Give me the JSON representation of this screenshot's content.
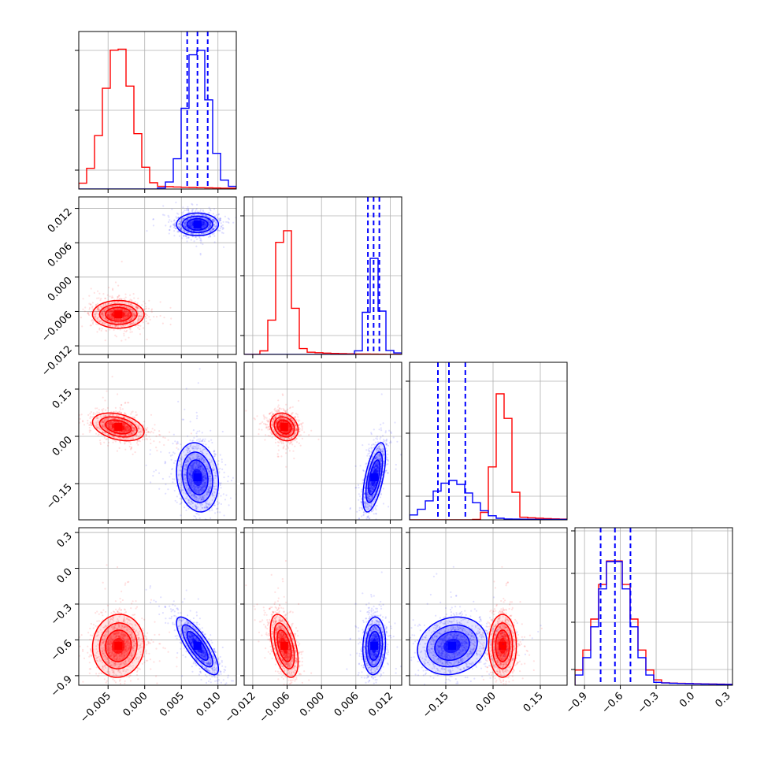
{
  "chart_data": {
    "type": "corner",
    "title": "",
    "grid": true,
    "series": [
      {
        "color": "#ff0000",
        "mean": [
          -0.0036,
          -0.0065,
          0.03,
          -0.65
        ],
        "sd": [
          0.0016,
          0.0011,
          0.02,
          0.12
        ],
        "corr": [
          [
            1,
            0,
            -0.35,
            0.05
          ],
          [
            0,
            1,
            -0.2,
            -0.5
          ],
          [
            -0.35,
            -0.2,
            1,
            0
          ],
          [
            0.05,
            -0.5,
            0,
            1
          ]
        ]
      },
      {
        "color": "#0000ff",
        "mean": [
          0.0072,
          0.0092,
          -0.13,
          -0.65
        ],
        "sd": [
          0.0013,
          0.0009,
          0.05,
          0.11
        ],
        "corr": [
          [
            1,
            0,
            -0.15,
            -0.8
          ],
          [
            0,
            1,
            0.6,
            0.1
          ],
          [
            -0.15,
            0.6,
            1,
            0.15
          ],
          [
            -0.8,
            0.1,
            0.15,
            1
          ]
        ]
      }
    ],
    "quantiles": [
      [
        0.0058,
        0.0072,
        0.0086
      ],
      [
        0.0081,
        0.0091,
        0.0101
      ],
      [
        -0.175,
        -0.14,
        -0.088
      ],
      [
        -0.765,
        -0.645,
        -0.515
      ]
    ],
    "quantile_color": "#0000ff",
    "params": [
      {
        "range": [
          -0.009,
          0.0125
        ],
        "ticks": [
          -0.005,
          0.0,
          0.005,
          0.01
        ],
        "tick_labels": [
          "−0.005",
          "0.000",
          "0.005",
          "0.010"
        ]
      },
      {
        "range": [
          -0.0135,
          0.014
        ],
        "ticks": [
          -0.012,
          -0.006,
          0.0,
          0.006,
          0.012
        ],
        "tick_labels": [
          "−0.012",
          "−0.006",
          "0.000",
          "0.006",
          "0.012"
        ]
      },
      {
        "range": [
          -0.265,
          0.235
        ],
        "ticks": [
          -0.15,
          0.0,
          0.15
        ],
        "tick_labels": [
          "−0.15",
          "0.00",
          "0.15"
        ]
      },
      {
        "range": [
          -0.98,
          0.34
        ],
        "ticks": [
          -0.9,
          -0.6,
          -0.3,
          0.0,
          0.3
        ],
        "tick_labels": [
          "−0.9",
          "−0.6",
          "−0.3",
          "0.0",
          "0.3"
        ]
      }
    ],
    "diag_yticks": [
      [
        0.12,
        0.5,
        0.88
      ],
      [
        0.12,
        0.5,
        0.88
      ],
      [
        0.15,
        0.55,
        0.88
      ],
      [
        0.1,
        0.4,
        0.71,
        0.98
      ]
    ],
    "peaks": [
      {
        "red": 0.92,
        "blue": 0.92
      },
      {
        "red": 0.86,
        "blue": 0.61
      },
      {
        "red": 0.84,
        "blue": 0.25
      },
      {
        "red": 0.81,
        "blue": 0.81
      }
    ]
  }
}
